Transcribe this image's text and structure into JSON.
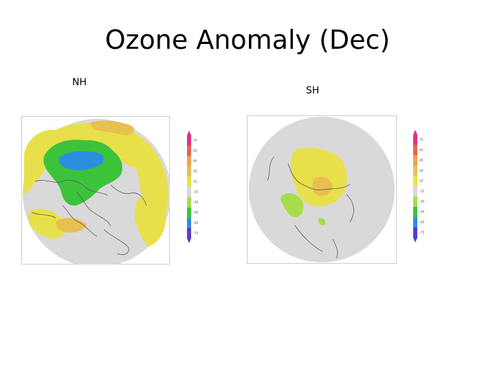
{
  "title": "Ozone Anomaly (Dec)",
  "panels": [
    {
      "id": "nh",
      "label": "NH"
    },
    {
      "id": "sh",
      "label": "SH"
    }
  ],
  "colorbar": {
    "levels": [
      "75",
      "60",
      "45",
      "30",
      "15",
      "-15",
      "-30",
      "-45",
      "-60",
      "-75"
    ],
    "colors": [
      "#e0308a",
      "#e4684a",
      "#eda150",
      "#e8c050",
      "#e8e04a",
      "#d8d8d8",
      "#a8dd4a",
      "#3cc33c",
      "#2a8fe0",
      "#5a3ccc"
    ]
  }
}
